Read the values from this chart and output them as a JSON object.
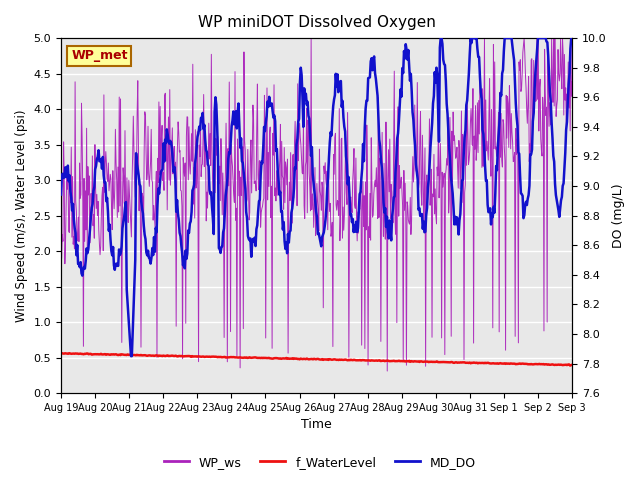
{
  "title": "WP miniDOT Dissolved Oxygen",
  "xlabel": "Time",
  "ylabel_left": "Wind Speed (m/s), Water Level (psi)",
  "ylabel_right": "DO (mg/L)",
  "ylim_left": [
    0.0,
    5.0
  ],
  "ylim_right": [
    7.6,
    10.0
  ],
  "color_wp_ws": "#AA22BB",
  "color_water_level": "#EE1111",
  "color_md_do": "#1111CC",
  "bg_color": "#E8E8E8",
  "legend_label_ws": "WP_ws",
  "legend_label_wl": "f_WaterLevel",
  "legend_label_do": "MD_DO",
  "annotation_text": "WP_met",
  "annotation_color": "#AA0000",
  "annotation_bg": "#FFFF99",
  "annotation_border": "#AA6600",
  "xtick_labels": [
    "Aug 19",
    "Aug 20",
    "Aug 21",
    "Aug 22",
    "Aug 23",
    "Aug 24",
    "Aug 25",
    "Aug 26",
    "Aug 27",
    "Aug 28",
    "Aug 29",
    "Aug 30",
    "Aug 31",
    "Sep 1",
    "Sep 2",
    "Sep 3"
  ]
}
